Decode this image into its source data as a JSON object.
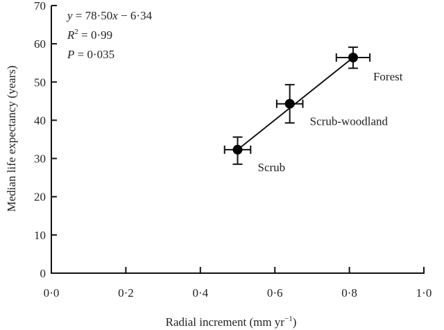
{
  "chart_data": {
    "type": "scatter",
    "title": "",
    "xlabel": "Radial increment (mm yr",
    "xlabel_sup": "−1",
    "xlabel_close": ")",
    "ylabel": "Median life expectancy (years)",
    "xlim": [
      0.0,
      1.0
    ],
    "ylim": [
      0,
      70
    ],
    "x_ticks": [
      "0·0",
      "0·2",
      "0·4",
      "0·6",
      "0·8",
      "1·0"
    ],
    "y_ticks": [
      "0",
      "10",
      "20",
      "30",
      "40",
      "50",
      "60",
      "70"
    ],
    "grid": false,
    "legend": null,
    "points": [
      {
        "label": "Scrub",
        "x": 0.5,
        "y": 32.3,
        "x_err": 0.035,
        "y_err_low": 28.5,
        "y_err_high": 35.6
      },
      {
        "label": "Scrub-woodland",
        "x": 0.64,
        "y": 44.3,
        "x_err": 0.035,
        "y_err_low": 39.3,
        "y_err_high": 49.3
      },
      {
        "label": "Forest",
        "x": 0.81,
        "y": 56.4,
        "x_err": 0.045,
        "y_err_low": 53.6,
        "y_err_high": 59.1
      }
    ],
    "fit_line": {
      "x_start": 0.5,
      "x_end": 0.81
    },
    "annotations": {
      "equation": {
        "y": "y",
        "rest": " = 78·50",
        "x": "x",
        "tail": " − 6·34"
      },
      "r2": {
        "R": "R",
        "sup": "2",
        "rest": " = 0·99"
      },
      "p": {
        "P": "P",
        "rest": " = 0·035"
      }
    }
  }
}
